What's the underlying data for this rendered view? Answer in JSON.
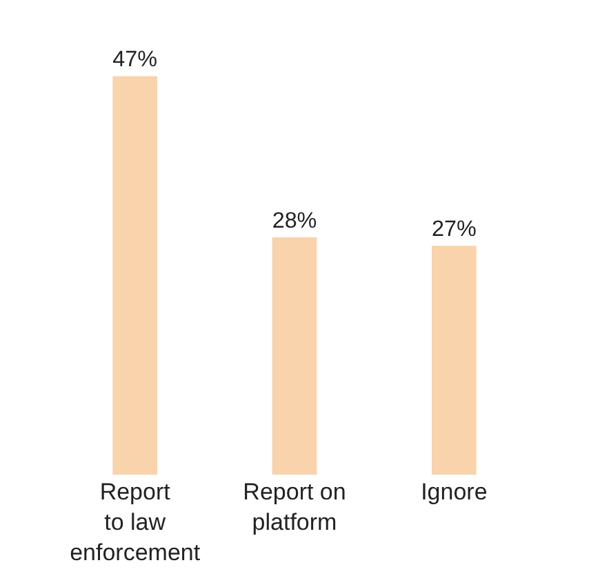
{
  "chart_data": {
    "type": "bar",
    "categories": [
      "Report\nto law\nenforcement",
      "Report on\nplatform",
      "Ignore"
    ],
    "values": [
      47,
      28,
      27
    ],
    "value_labels": [
      "47%",
      "28%",
      "27%"
    ],
    "color": "#f8d3ac",
    "tick_labels": "x",
    "legend": false
  }
}
